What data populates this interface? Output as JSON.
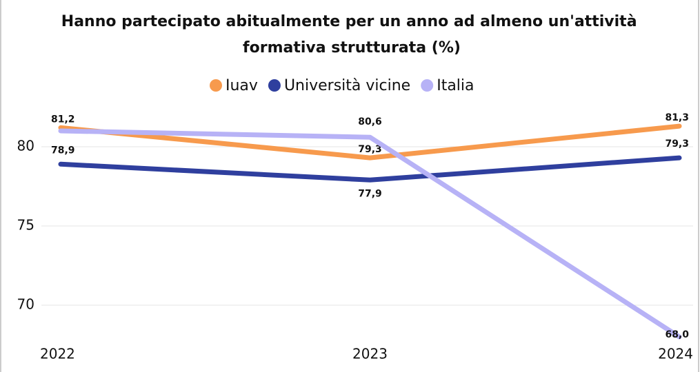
{
  "chart_data": {
    "type": "line",
    "title": "Hanno partecipato abitualmente per un anno ad almeno un'attività formativa strutturata (%)",
    "categories": [
      "2022",
      "2023",
      "2024"
    ],
    "series": [
      {
        "name": "Iuav",
        "color": "#f79a4d",
        "values": [
          81.2,
          79.3,
          81.3
        ],
        "value_labels": [
          "81,2",
          "79,3",
          "81,3"
        ]
      },
      {
        "name": "Università vicine",
        "color": "#2f3f9e",
        "values": [
          78.9,
          77.9,
          79.3
        ],
        "value_labels": [
          "78,9",
          "77,9",
          "79,3"
        ]
      },
      {
        "name": "Italia",
        "color": "#b7b2f6",
        "values": [
          81.0,
          80.6,
          68.0
        ],
        "value_labels": [
          null,
          "80,6",
          "68,0"
        ]
      }
    ],
    "ylim": [
      68,
      82
    ],
    "yticks": [
      70,
      75,
      80
    ],
    "grid": true,
    "legend": "top"
  }
}
